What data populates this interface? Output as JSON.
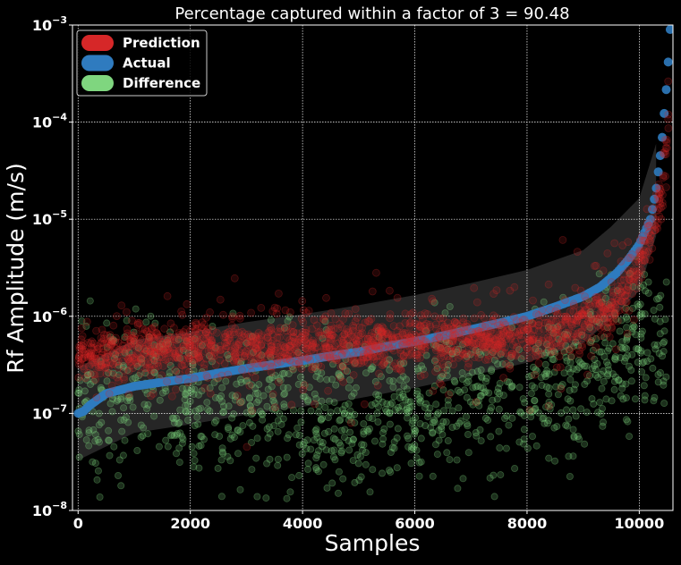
{
  "chart_data": {
    "type": "scatter",
    "title": "Percentage captured within a factor of 3 = 90.48",
    "xlabel": "Samples",
    "ylabel": "Rf Amplitude (m/s)",
    "xlim": [
      -100,
      10600
    ],
    "ylim": [
      1e-08,
      0.001
    ],
    "yscale": "log",
    "grid": true,
    "legend_position": "top-left",
    "xticks": [
      0,
      2000,
      4000,
      6000,
      8000,
      10000
    ],
    "xtick_labels": [
      "0",
      "2000",
      "4000",
      "6000",
      "8000",
      "10000"
    ],
    "yticks": [
      1e-08,
      1e-07,
      1e-06,
      1e-05,
      0.0001,
      0.001
    ],
    "ytick_labels": [
      {
        "base": "10",
        "exp": "−8"
      },
      {
        "base": "10",
        "exp": "−7"
      },
      {
        "base": "10",
        "exp": "−6"
      },
      {
        "base": "10",
        "exp": "−5"
      },
      {
        "base": "10",
        "exp": "−4"
      },
      {
        "base": "10",
        "exp": "−3"
      }
    ],
    "series": [
      {
        "name": "Actual",
        "color": "#2f7bbf",
        "x": [
          0,
          100,
          200,
          500,
          1000,
          1500,
          2000,
          2500,
          3000,
          3500,
          4000,
          4500,
          5000,
          5500,
          6000,
          6500,
          7000,
          7500,
          8000,
          8500,
          9000,
          9300,
          9600,
          9800,
          10000,
          10200,
          10300,
          10400,
          10500,
          10550
        ],
        "y": [
          1e-07,
          1.05e-07,
          1.2e-07,
          1.6e-07,
          1.9e-07,
          2.1e-07,
          2.3e-07,
          2.6e-07,
          2.9e-07,
          3.2e-07,
          3.5e-07,
          3.9e-07,
          4.3e-07,
          4.9e-07,
          5.5e-07,
          6.3e-07,
          7.3e-07,
          8.5e-07,
          1e-06,
          1.25e-06,
          1.6e-06,
          2e-06,
          2.8e-06,
          3.8e-06,
          5.5e-06,
          1e-05,
          2e-05,
          6e-05,
          0.0003,
          0.0009
        ]
      },
      {
        "name": "Prediction",
        "color": "#d62728",
        "x": [
          0,
          100,
          200,
          500,
          1000,
          2000,
          3000,
          4000,
          5000,
          6000,
          7000,
          8000,
          8500,
          9000,
          9500,
          9800,
          10000,
          10200,
          10400,
          10500,
          10550
        ],
        "y": [
          4e-07,
          4.2e-07,
          4e-07,
          4.2e-07,
          4.5e-07,
          4.7e-07,
          4.8e-07,
          5e-07,
          5.2e-07,
          5.4e-07,
          5.7e-07,
          6.2e-07,
          7e-07,
          8.5e-07,
          1.2e-06,
          2e-06,
          3.5e-06,
          7e-06,
          2e-05,
          6e-05,
          0.0005
        ]
      },
      {
        "name": "Difference",
        "color": "#7fd67f",
        "x": [
          0,
          500,
          1000,
          2000,
          3000,
          4000,
          5000,
          6000,
          7000,
          8000,
          9000,
          10000
        ],
        "y": [
          1.6e-07,
          1.7e-07,
          1.6e-07,
          1.4e-07,
          1.2e-07,
          1e-07,
          1e-07,
          1.1e-07,
          1.2e-07,
          1.6e-07,
          2.5e-07,
          6e-07
        ]
      }
    ],
    "band": {
      "color": "#ffffff",
      "x": [
        0,
        1000,
        2000,
        3000,
        4000,
        5000,
        6000,
        7000,
        8000,
        9000,
        9500,
        10000,
        10300
      ],
      "upper": [
        3e-07,
        5.7e-07,
        6.9e-07,
        8.7e-07,
        1.05e-06,
        1.3e-06,
        1.65e-06,
        2.2e-06,
        3e-06,
        4.8e-06,
        8.4e-06,
        1.65e-05,
        6e-05
      ],
      "lower": [
        3.3e-08,
        6.3e-08,
        7.7e-08,
        9.7e-08,
        1.17e-07,
        1.43e-07,
        1.83e-07,
        2.43e-07,
        3.33e-07,
        5.3e-07,
        9.3e-07,
        1.83e-06,
        6.7e-06
      ]
    }
  }
}
